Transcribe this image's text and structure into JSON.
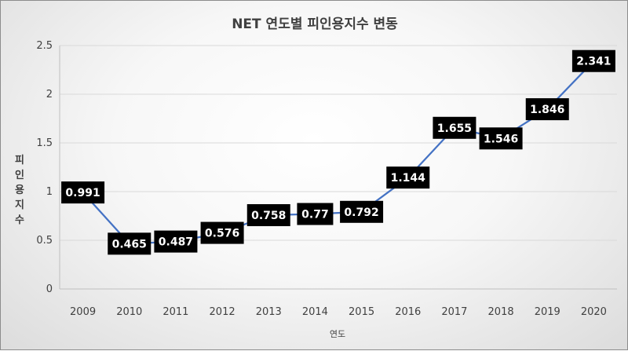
{
  "chart_data": {
    "type": "line",
    "title": "NET 연도별 피인용지수 변동",
    "xlabel": "연도",
    "ylabel": "피인용지수",
    "x": [
      "2009",
      "2010",
      "2011",
      "2012",
      "2013",
      "2014",
      "2015",
      "2016",
      "2017",
      "2018",
      "2019",
      "2020"
    ],
    "series": [
      {
        "values": [
          0.991,
          0.465,
          0.487,
          0.576,
          0.758,
          0.77,
          0.792,
          1.144,
          1.655,
          1.546,
          1.846,
          2.341
        ],
        "labels": [
          "0.991",
          "0.465",
          "0.487",
          "0.576",
          "0.758",
          "0.77",
          "0.792",
          "1.144",
          "1.655",
          "1.546",
          "1.846",
          "2.341"
        ],
        "color": "#4472c4"
      }
    ],
    "ylim": [
      0,
      2.5
    ],
    "yticks": [
      "0",
      "0.5",
      "1",
      "1.5",
      "2",
      "2.5"
    ],
    "grid": true,
    "label_bg": "#000000"
  }
}
